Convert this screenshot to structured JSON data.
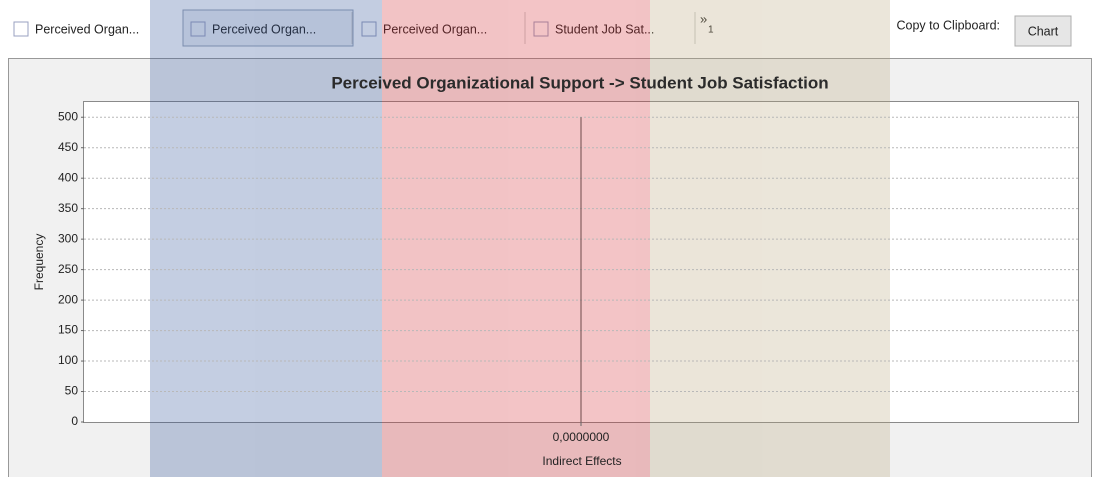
{
  "tabs": [
    "Perceived Organ...",
    "Perceived Organ...",
    "Perceived Organ...",
    "Student Job Sat..."
  ],
  "overflow": {
    "symbol": "»",
    "count": 1
  },
  "clipboard": {
    "label": "Copy to Clipboard:",
    "button": "Chart"
  },
  "chart_data": {
    "type": "histogram",
    "title": "Perceived Organizational Support -> Student Job Satisfaction",
    "xlabel": "Indirect Effects",
    "ylabel": "Frequency",
    "bins": [
      -0.001,
      0.001
    ],
    "counts": [
      500
    ],
    "color": "#6e4a4a",
    "xlim": [
      -1,
      1
    ],
    "xticks": [
      {
        "value": 0,
        "label": "0,0000000"
      }
    ],
    "ylim": [
      0,
      525
    ],
    "yticks": [
      0,
      50,
      100,
      150,
      200,
      250,
      300,
      350,
      400,
      450,
      500
    ],
    "grid": true
  }
}
